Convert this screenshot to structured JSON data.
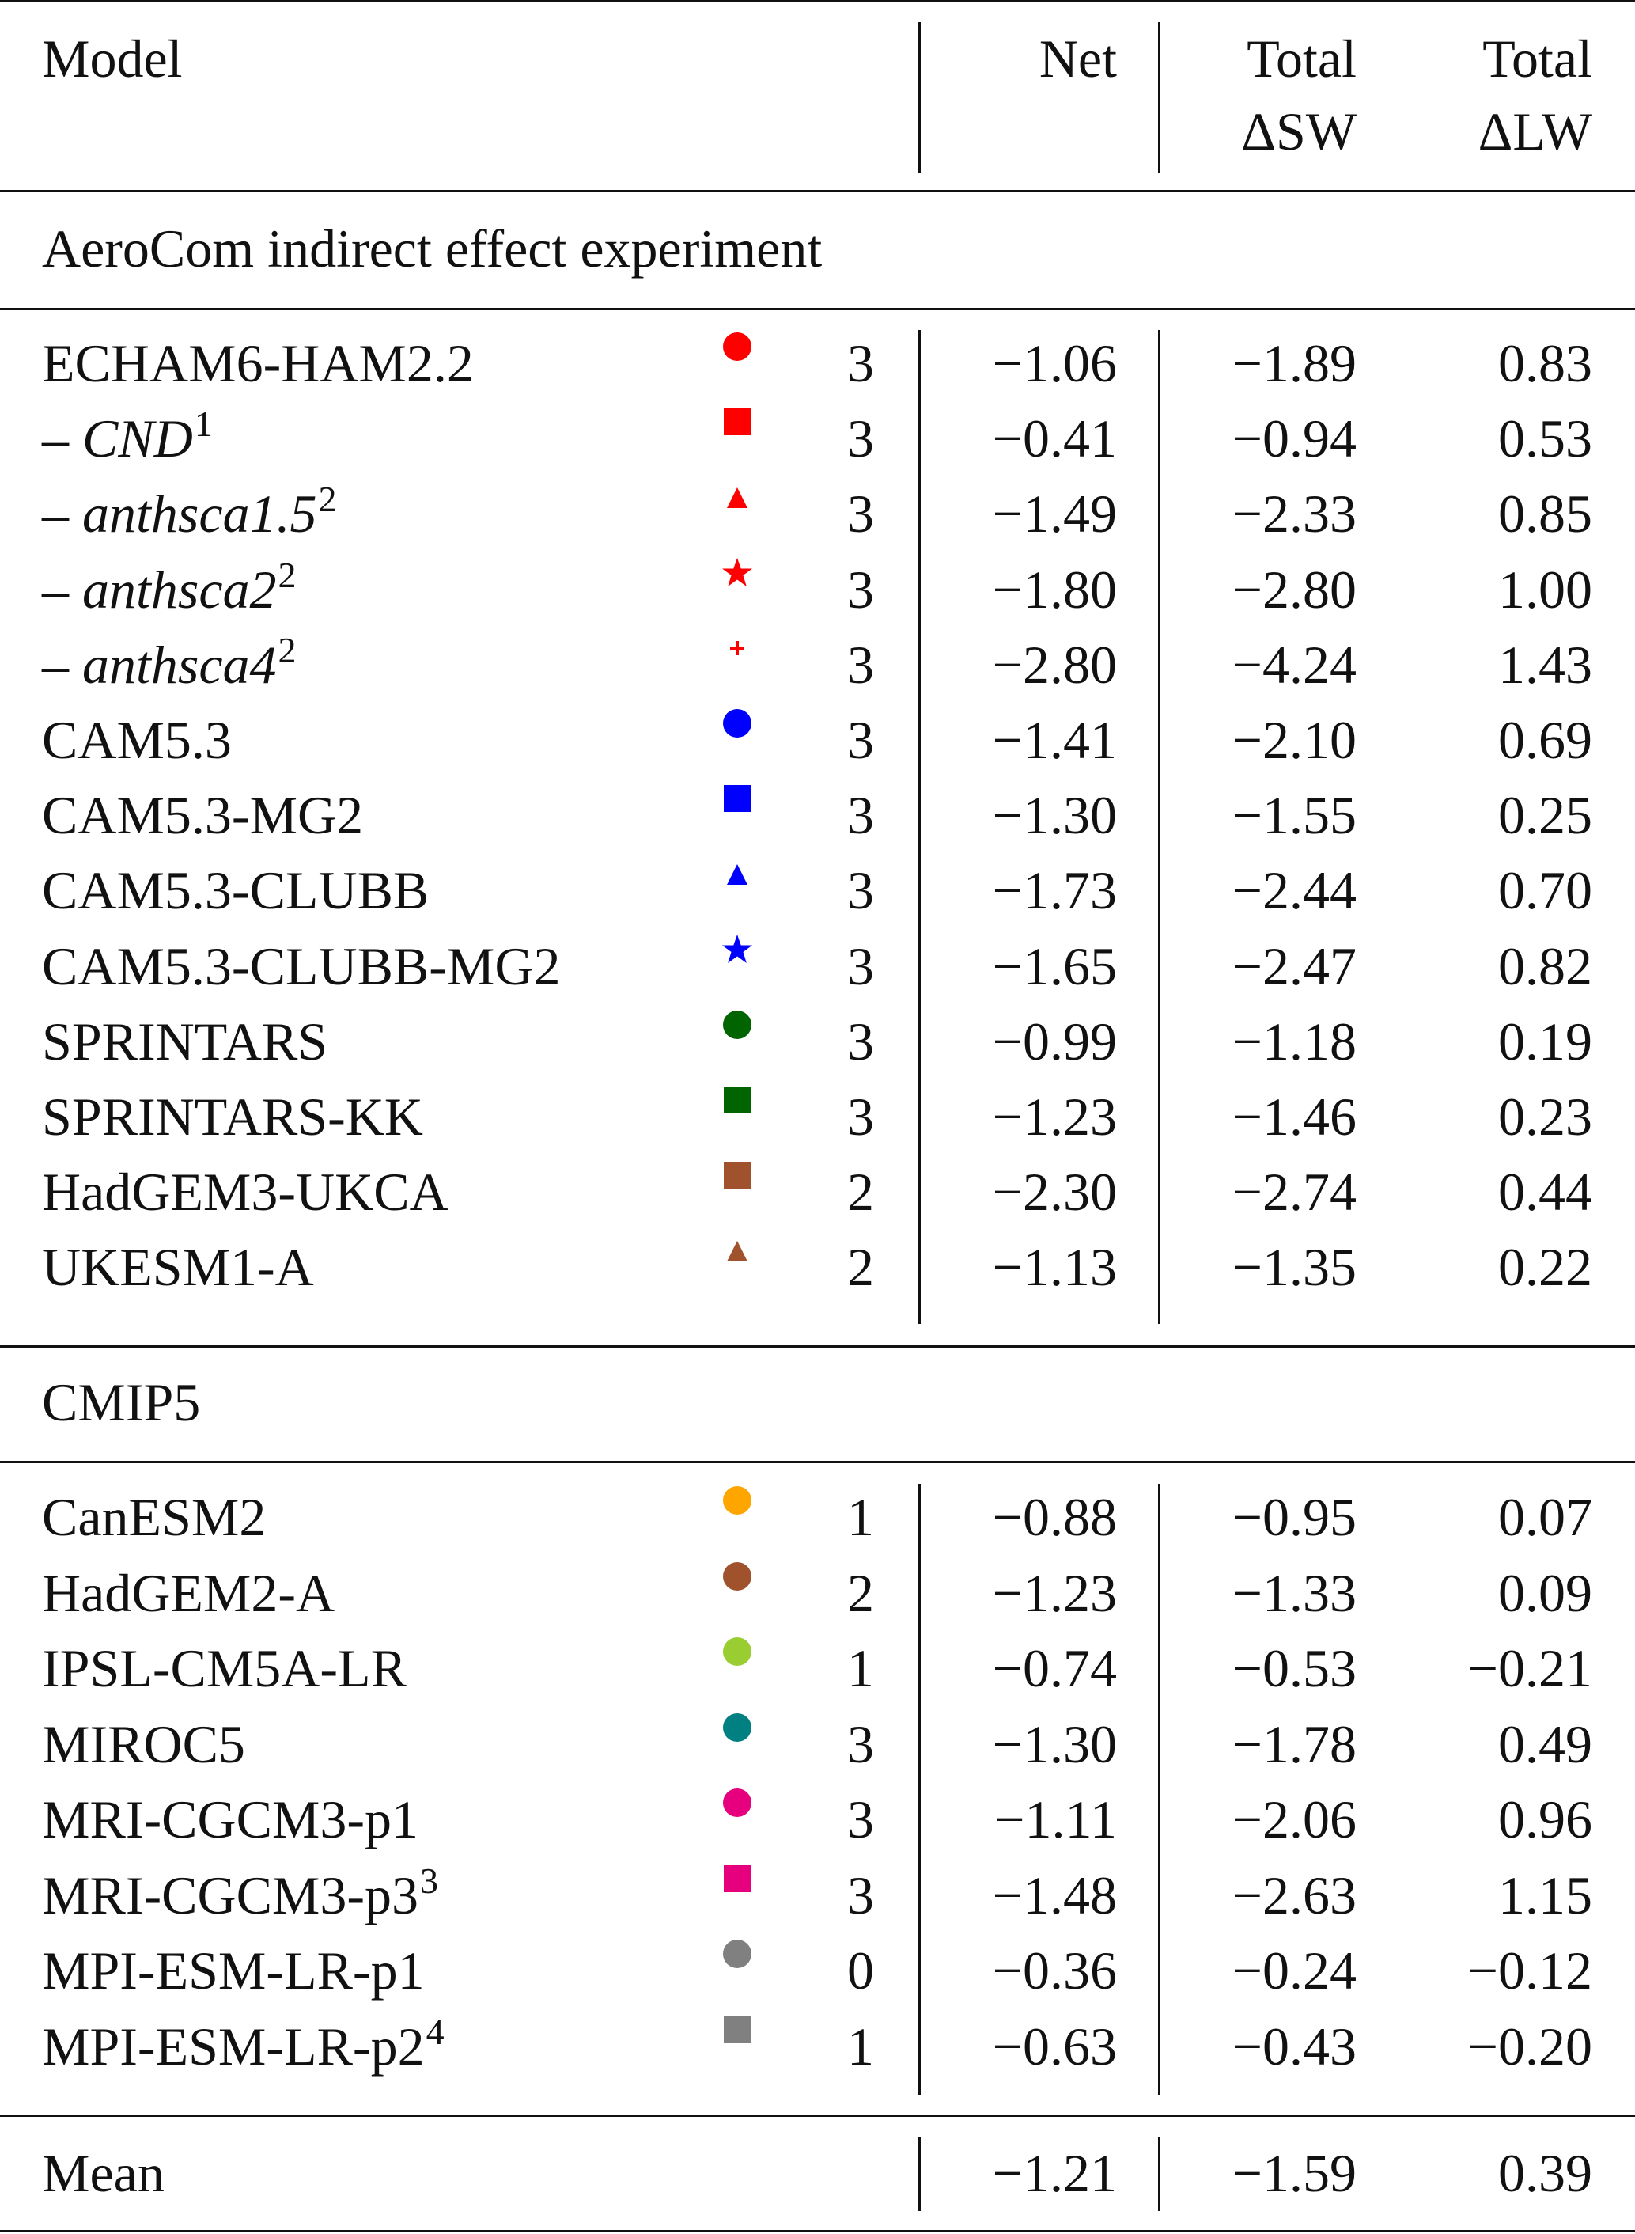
{
  "header": {
    "model": "Model",
    "net": "Net",
    "sw_line1": "Total",
    "sw_line2": "ΔSW",
    "lw_line1": "Total",
    "lw_line2": "ΔLW"
  },
  "sections": {
    "aerocom": "AeroCom indirect effect experiment",
    "cmip5": "CMIP5"
  },
  "aerocom_rows": [
    {
      "prefix": "",
      "name": "ECHAM6-HAM2.2",
      "sup": "",
      "marker": "circle",
      "color": "#ff0000",
      "flag": "3",
      "net": "−1.06",
      "sw": "−1.89",
      "lw": "0.83"
    },
    {
      "prefix": "– ",
      "name": "CND",
      "sup": "1",
      "marker": "square",
      "color": "#ff0000",
      "flag": "3",
      "net": "−0.41",
      "sw": "−0.94",
      "lw": "0.53"
    },
    {
      "prefix": "– ",
      "name": "anthsca1.5",
      "sup": "2",
      "marker": "triangle",
      "color": "#ff0000",
      "flag": "3",
      "net": "−1.49",
      "sw": "−2.33",
      "lw": "0.85"
    },
    {
      "prefix": "– ",
      "name": "anthsca2",
      "sup": "2",
      "marker": "star",
      "color": "#ff0000",
      "flag": "3",
      "net": "−1.80",
      "sw": "−2.80",
      "lw": "1.00"
    },
    {
      "prefix": "– ",
      "name": "anthsca4",
      "sup": "2",
      "marker": "plus",
      "color": "#ff0000",
      "flag": "3",
      "net": "−2.80",
      "sw": "−4.24",
      "lw": "1.43"
    },
    {
      "prefix": "",
      "name": "CAM5.3",
      "sup": "",
      "marker": "circle",
      "color": "#0000ff",
      "flag": "3",
      "net": "−1.41",
      "sw": "−2.10",
      "lw": "0.69"
    },
    {
      "prefix": "",
      "name": "CAM5.3-MG2",
      "sup": "",
      "marker": "square",
      "color": "#0000ff",
      "flag": "3",
      "net": "−1.30",
      "sw": "−1.55",
      "lw": "0.25"
    },
    {
      "prefix": "",
      "name": "CAM5.3-CLUBB",
      "sup": "",
      "marker": "triangle",
      "color": "#0000ff",
      "flag": "3",
      "net": "−1.73",
      "sw": "−2.44",
      "lw": "0.70"
    },
    {
      "prefix": "",
      "name": "CAM5.3-CLUBB-MG2",
      "sup": "",
      "marker": "star",
      "color": "#0000ff",
      "flag": "3",
      "net": "−1.65",
      "sw": "−2.47",
      "lw": "0.82"
    },
    {
      "prefix": "",
      "name": "SPRINTARS",
      "sup": "",
      "marker": "circle",
      "color": "#006400",
      "flag": "3",
      "net": "−0.99",
      "sw": "−1.18",
      "lw": "0.19"
    },
    {
      "prefix": "",
      "name": "SPRINTARS-KK",
      "sup": "",
      "marker": "square",
      "color": "#006400",
      "flag": "3",
      "net": "−1.23",
      "sw": "−1.46",
      "lw": "0.23"
    },
    {
      "prefix": "",
      "name": "HadGEM3-UKCA",
      "sup": "",
      "marker": "square",
      "color": "#a0522d",
      "flag": "2",
      "net": "−2.30",
      "sw": "−2.74",
      "lw": "0.44"
    },
    {
      "prefix": "",
      "name": "UKESM1-A",
      "sup": "",
      "marker": "triangle",
      "color": "#a0522d",
      "flag": "2",
      "net": "−1.13",
      "sw": "−1.35",
      "lw": "0.22"
    }
  ],
  "cmip5_rows": [
    {
      "prefix": "",
      "name": "CanESM2",
      "sup": "",
      "marker": "circle",
      "color": "#ffa500",
      "flag": "1",
      "net": "−0.88",
      "sw": "−0.95",
      "lw": "0.07"
    },
    {
      "prefix": "",
      "name": "HadGEM2-A",
      "sup": "",
      "marker": "circle",
      "color": "#a0522d",
      "flag": "2",
      "net": "−1.23",
      "sw": "−1.33",
      "lw": "0.09"
    },
    {
      "prefix": "",
      "name": "IPSL-CM5A-LR",
      "sup": "",
      "marker": "circle",
      "color": "#9acd32",
      "flag": "1",
      "net": "−0.74",
      "sw": "−0.53",
      "lw": "−0.21"
    },
    {
      "prefix": "",
      "name": "MIROC5",
      "sup": "",
      "marker": "circle",
      "color": "#008080",
      "flag": "3",
      "net": "−1.30",
      "sw": "−1.78",
      "lw": "0.49"
    },
    {
      "prefix": "",
      "name": "MRI-CGCM3-p1",
      "sup": "",
      "marker": "circle",
      "color": "#e6007e",
      "flag": "3",
      "net": "−1.11",
      "sw": "−2.06",
      "lw": "0.96"
    },
    {
      "prefix": "",
      "name": "MRI-CGCM3-p3",
      "sup": "3",
      "marker": "square",
      "color": "#e6007e",
      "flag": "3",
      "net": "−1.48",
      "sw": "−2.63",
      "lw": "1.15"
    },
    {
      "prefix": "",
      "name": "MPI-ESM-LR-p1",
      "sup": "",
      "marker": "circle",
      "color": "#808080",
      "flag": "0",
      "net": "−0.36",
      "sw": "−0.24",
      "lw": "−0.12"
    },
    {
      "prefix": "",
      "name": "MPI-ESM-LR-p2",
      "sup": "4",
      "marker": "square",
      "color": "#808080",
      "flag": "1",
      "net": "−0.63",
      "sw": "−0.43",
      "lw": "−0.20"
    }
  ],
  "mean": {
    "label": "Mean",
    "net": "−1.21",
    "sw": "−1.59",
    "lw": "0.39"
  }
}
